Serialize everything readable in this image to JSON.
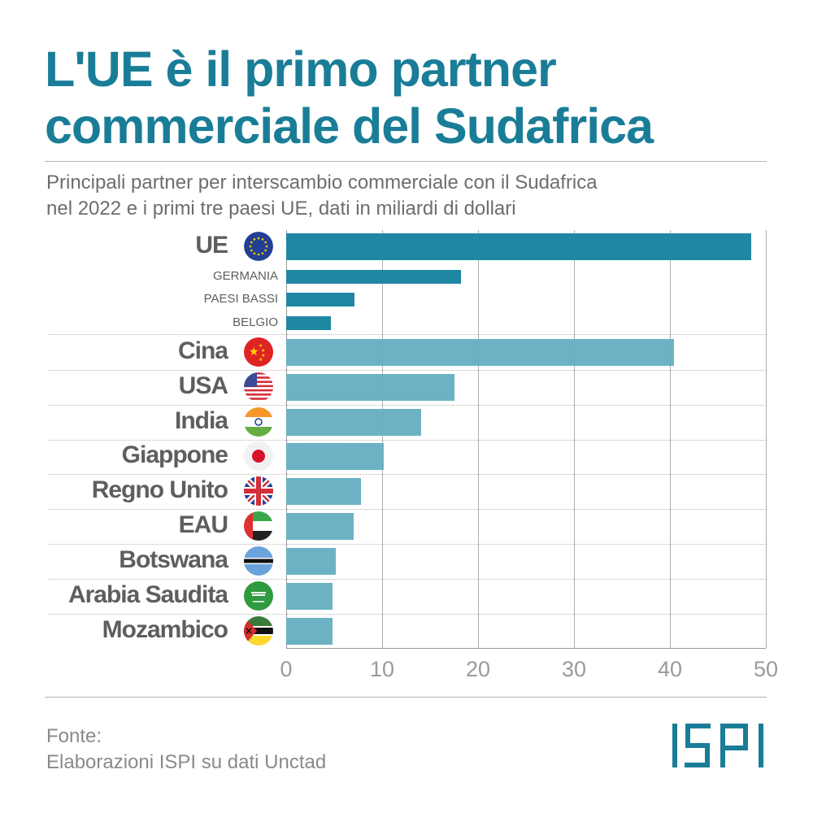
{
  "title": [
    "L'UE è il primo partner",
    "commerciale del Sudafrica"
  ],
  "subtitle": [
    "Principali partner per interscambio commerciale con il Sudafrica",
    "nel 2022 e i primi tre paesi UE, dati in miliardi di dollari"
  ],
  "colors": {
    "title": "#1a7d97",
    "eu_bars": "#1f87a2",
    "other_bars": "#68b0c1"
  },
  "chart_data": {
    "type": "bar",
    "orientation": "horizontal",
    "categories": [
      "UE",
      "GERMANIA",
      "PAESI BASSI",
      "BELGIO",
      "Cina",
      "USA",
      "India",
      "Giappone",
      "Regno Unito",
      "EAU",
      "Botswana",
      "Arabia Saudita",
      "Mozambico"
    ],
    "values": [
      48.5,
      18.2,
      7.1,
      4.7,
      40.4,
      17.5,
      14.1,
      10.2,
      7.8,
      7.0,
      5.2,
      4.8,
      4.8
    ],
    "flags": [
      "eu-flag-icon",
      null,
      null,
      null,
      "china-flag-icon",
      "usa-flag-icon",
      "india-flag-icon",
      "japan-flag-icon",
      "uk-flag-icon",
      "uae-flag-icon",
      "botswana-flag-icon",
      "saudi-arabia-flag-icon",
      "mozambique-flag-icon"
    ],
    "xlim": [
      0,
      50
    ],
    "xticks": [
      "0",
      "10",
      "20",
      "30",
      "40",
      "50"
    ],
    "grid": true
  },
  "footer": {
    "source_label": "Fonte:",
    "source": "Elaborazioni ISPI su dati Unctad",
    "logo": "ISPI"
  }
}
